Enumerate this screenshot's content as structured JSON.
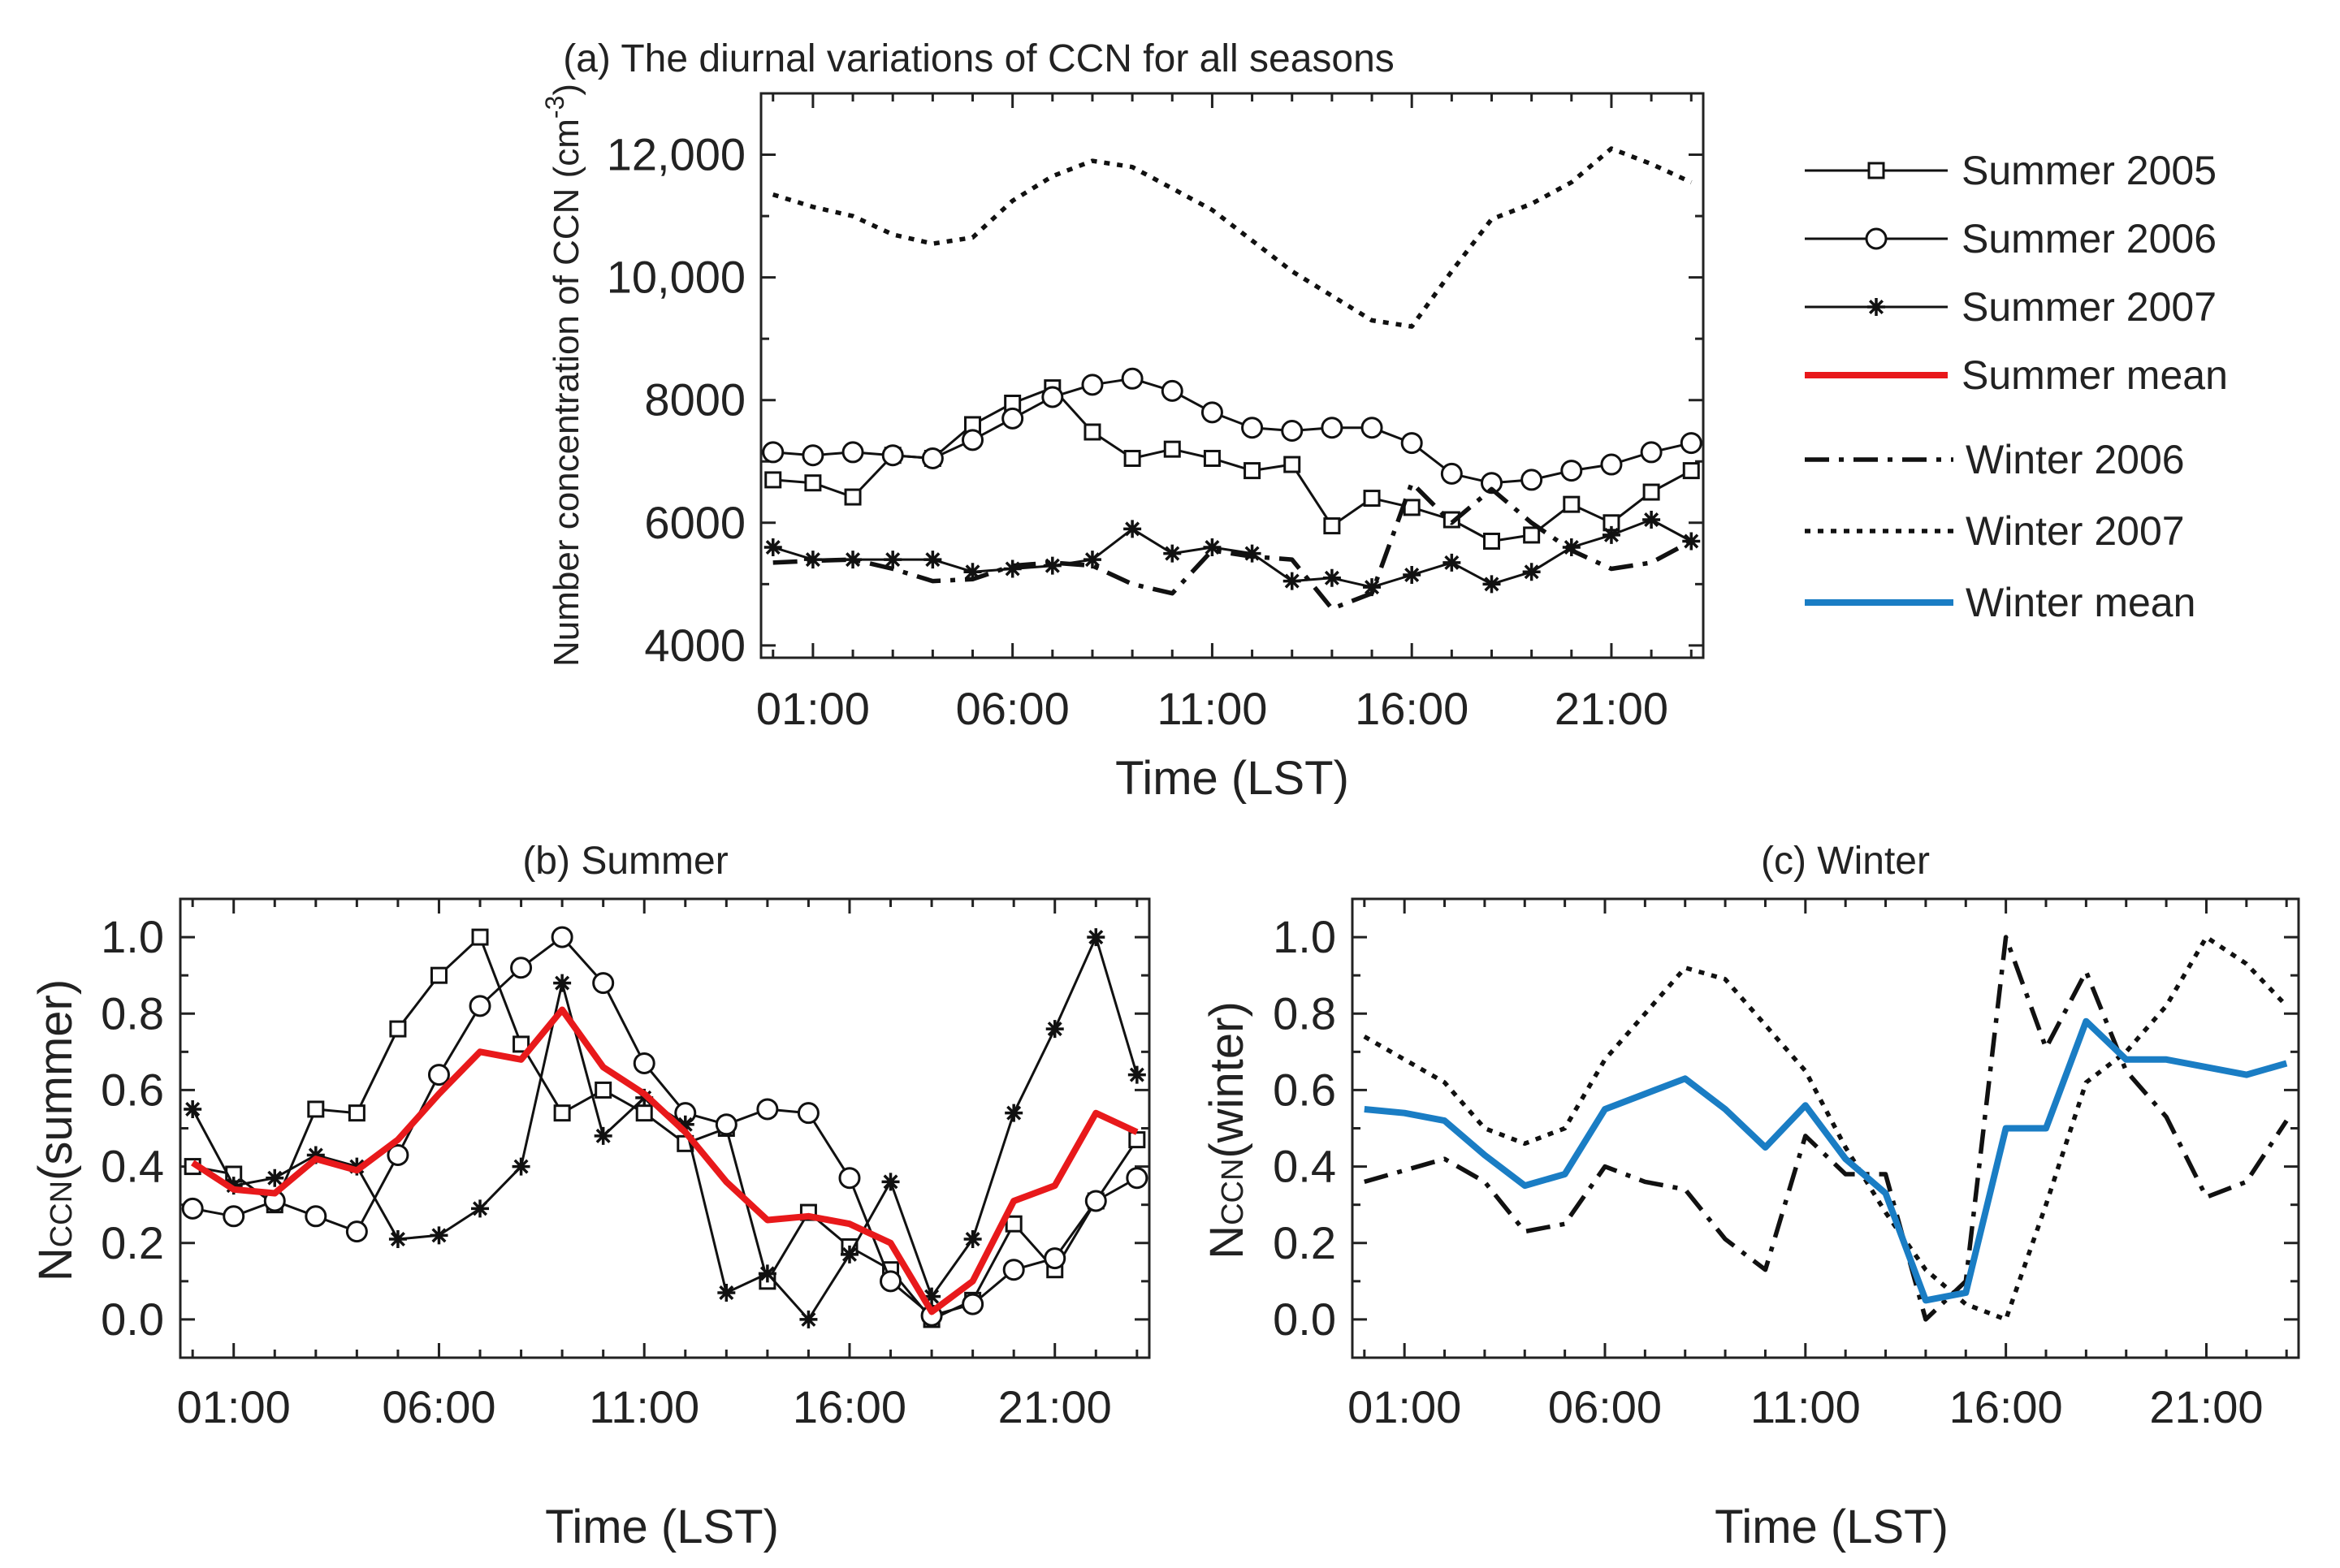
{
  "colors": {
    "summer_mean": "#e8191b",
    "winter_mean": "#1a7dc4",
    "black": "#111111"
  },
  "legend": {
    "items": [
      {
        "label": "Summer 2005",
        "style": "solid",
        "marker": "square",
        "color": "#111111"
      },
      {
        "label": "Summer 2006",
        "style": "solid",
        "marker": "circle",
        "color": "#111111"
      },
      {
        "label": "Summer 2007",
        "style": "solid",
        "marker": "star",
        "color": "#111111"
      },
      {
        "label": "Summer mean",
        "style": "solid",
        "marker": "none",
        "color": "#e8191b"
      },
      {
        "label": "Winter 2006",
        "style": "dashdot",
        "marker": "none",
        "color": "#111111"
      },
      {
        "label": "Winter 2007",
        "style": "dotted",
        "marker": "none",
        "color": "#111111"
      },
      {
        "label": "Winter mean",
        "style": "solid",
        "marker": "none",
        "color": "#1a7dc4"
      }
    ]
  },
  "chart_data": [
    {
      "id": "a",
      "type": "line",
      "title": "(a) The diurnal variations of CCN for all seasons",
      "xlabel": "Time (LST)",
      "ylabel": "Number concentration of CCN (cm",
      "ylabel_sup": "-3",
      "ylabel_end": ")",
      "x": [
        0,
        1,
        2,
        3,
        4,
        5,
        6,
        7,
        8,
        9,
        10,
        11,
        12,
        13,
        14,
        15,
        16,
        17,
        18,
        19,
        20,
        21,
        22,
        23
      ],
      "xlim": [
        -0.3,
        23.3
      ],
      "ylim": [
        3800,
        13000
      ],
      "xticks": [
        1,
        6,
        11,
        16,
        21
      ],
      "xtick_labels": [
        "01:00",
        "06:00",
        "11:00",
        "16:00",
        "21:00"
      ],
      "yticks": [
        4000,
        6000,
        8000,
        10000,
        12000
      ],
      "ytick_labels": [
        "4000",
        "6000",
        "8000",
        "10,000",
        "12,000"
      ],
      "series": [
        {
          "name": "Summer 2005",
          "style": "solid",
          "marker": "square",
          "color": "#111111",
          "values": [
            6700,
            6650,
            6420,
            7100,
            7050,
            7600,
            7950,
            8200,
            7480,
            7050,
            7200,
            7050,
            6850,
            6950,
            5950,
            6400,
            6250,
            6050,
            5700,
            5800,
            6300,
            6000,
            6500,
            6850
          ]
        },
        {
          "name": "Summer 2006",
          "style": "solid",
          "marker": "circle",
          "color": "#111111",
          "values": [
            7150,
            7100,
            7150,
            7100,
            7050,
            7350,
            7700,
            8050,
            8250,
            8350,
            8150,
            7800,
            7550,
            7500,
            7550,
            7550,
            7300,
            6800,
            6650,
            6700,
            6850,
            6950,
            7150,
            7300
          ]
        },
        {
          "name": "Summer 2007",
          "style": "solid",
          "marker": "star",
          "color": "#111111",
          "values": [
            5600,
            5400,
            5400,
            5400,
            5400,
            5200,
            5250,
            5300,
            5400,
            5900,
            5500,
            5600,
            5500,
            5050,
            5100,
            4950,
            5150,
            5350,
            5000,
            5200,
            5600,
            5800,
            6050,
            5700
          ]
        },
        {
          "name": "Winter 2006",
          "style": "dashdot",
          "color": "#111111",
          "values": [
            5350,
            5380,
            5400,
            5250,
            5050,
            5080,
            5300,
            5350,
            5300,
            5000,
            4850,
            5550,
            5450,
            5400,
            4600,
            4850,
            6650,
            6000,
            6550,
            6000,
            5550,
            5250,
            5350,
            5700
          ]
        },
        {
          "name": "Winter 2007",
          "style": "dotted",
          "color": "#111111",
          "values": [
            11350,
            11150,
            11000,
            10700,
            10550,
            10650,
            11250,
            11650,
            11900,
            11800,
            11450,
            11100,
            10600,
            10100,
            9700,
            9300,
            9200,
            10100,
            10950,
            11200,
            11550,
            12100,
            11850,
            11550
          ]
        }
      ]
    },
    {
      "id": "b",
      "type": "line",
      "title": "(b) Summer",
      "xlabel": "Time (LST)",
      "ylabel_main": "N",
      "ylabel_sub": "CCN",
      "ylabel_end": "(summer)",
      "x": [
        0,
        1,
        2,
        3,
        4,
        5,
        6,
        7,
        8,
        9,
        10,
        11,
        12,
        13,
        14,
        15,
        16,
        17,
        18,
        19,
        20,
        21,
        22,
        23
      ],
      "xlim": [
        -0.3,
        23.3
      ],
      "ylim": [
        -0.1,
        1.1
      ],
      "xticks": [
        1,
        6,
        11,
        16,
        21
      ],
      "xtick_labels": [
        "01:00",
        "06:00",
        "11:00",
        "16:00",
        "21:00"
      ],
      "yticks": [
        0.0,
        0.2,
        0.4,
        0.6,
        0.8,
        1.0
      ],
      "ytick_labels": [
        "0.0",
        "0.2",
        "0.4",
        "0.6",
        "0.8",
        "1.0"
      ],
      "series": [
        {
          "name": "Summer 2005",
          "style": "solid",
          "marker": "square",
          "color": "#111111",
          "values": [
            0.4,
            0.38,
            0.3,
            0.55,
            0.54,
            0.76,
            0.9,
            1.0,
            0.72,
            0.54,
            0.6,
            0.54,
            0.46,
            0.5,
            0.1,
            0.28,
            0.19,
            0.13,
            0.0,
            0.05,
            0.25,
            0.13,
            0.31,
            0.47
          ]
        },
        {
          "name": "Summer 2006",
          "style": "solid",
          "marker": "circle",
          "color": "#111111",
          "values": [
            0.29,
            0.27,
            0.31,
            0.27,
            0.23,
            0.43,
            0.64,
            0.82,
            0.92,
            1.0,
            0.88,
            0.67,
            0.54,
            0.51,
            0.55,
            0.54,
            0.37,
            0.1,
            0.01,
            0.04,
            0.13,
            0.16,
            0.31,
            0.37
          ]
        },
        {
          "name": "Summer 2007",
          "style": "solid",
          "marker": "star",
          "color": "#111111",
          "values": [
            0.55,
            0.35,
            0.37,
            0.43,
            0.4,
            0.21,
            0.22,
            0.29,
            0.4,
            0.88,
            0.48,
            0.58,
            0.51,
            0.07,
            0.12,
            0.0,
            0.17,
            0.36,
            0.06,
            0.21,
            0.54,
            0.76,
            1.0,
            0.64
          ]
        },
        {
          "name": "Summer mean",
          "style": "solid",
          "marker": "none",
          "color": "#e8191b",
          "width": 8,
          "values": [
            0.41,
            0.34,
            0.33,
            0.42,
            0.39,
            0.47,
            0.59,
            0.7,
            0.68,
            0.81,
            0.66,
            0.59,
            0.49,
            0.36,
            0.26,
            0.27,
            0.25,
            0.2,
            0.02,
            0.1,
            0.31,
            0.35,
            0.54,
            0.49
          ]
        }
      ]
    },
    {
      "id": "c",
      "type": "line",
      "title": "(c) Winter",
      "xlabel": "Time (LST)",
      "ylabel_main": "N",
      "ylabel_sub": "CCN",
      "ylabel_end": "(winter)",
      "x": [
        0,
        1,
        2,
        3,
        4,
        5,
        6,
        7,
        8,
        9,
        10,
        11,
        12,
        13,
        14,
        15,
        16,
        17,
        18,
        19,
        20,
        21,
        22,
        23
      ],
      "xlim": [
        -0.3,
        23.3
      ],
      "ylim": [
        -0.1,
        1.1
      ],
      "xticks": [
        1,
        6,
        11,
        16,
        21
      ],
      "xtick_labels": [
        "01:00",
        "06:00",
        "11:00",
        "16:00",
        "21:00"
      ],
      "yticks": [
        0.0,
        0.2,
        0.4,
        0.6,
        0.8,
        1.0
      ],
      "ytick_labels": [
        "0.0",
        "0.2",
        "0.4",
        "0.6",
        "0.8",
        "1.0"
      ],
      "series": [
        {
          "name": "Winter 2006",
          "style": "dashdot",
          "marker": "none",
          "color": "#111111",
          "values": [
            0.36,
            0.39,
            0.42,
            0.36,
            0.23,
            0.25,
            0.4,
            0.36,
            0.34,
            0.21,
            0.13,
            0.48,
            0.38,
            0.38,
            0.0,
            0.1,
            1.0,
            0.71,
            0.91,
            0.65,
            0.53,
            0.32,
            0.36,
            0.52
          ]
        },
        {
          "name": "Winter 2007",
          "style": "dotted",
          "marker": "none",
          "color": "#111111",
          "values": [
            0.74,
            0.68,
            0.62,
            0.5,
            0.46,
            0.5,
            0.68,
            0.8,
            0.92,
            0.89,
            0.77,
            0.65,
            0.45,
            0.28,
            0.13,
            0.04,
            0.0,
            0.3,
            0.62,
            0.7,
            0.82,
            1.0,
            0.93,
            0.82
          ]
        },
        {
          "name": "Winter mean",
          "style": "solid",
          "marker": "none",
          "color": "#1a7dc4",
          "width": 8,
          "values": [
            0.55,
            0.54,
            0.52,
            0.43,
            0.35,
            0.38,
            0.55,
            0.59,
            0.63,
            0.55,
            0.45,
            0.56,
            0.42,
            0.33,
            0.05,
            0.07,
            0.5,
            0.5,
            0.78,
            0.68,
            0.68,
            0.66,
            0.64,
            0.67
          ]
        }
      ]
    }
  ]
}
